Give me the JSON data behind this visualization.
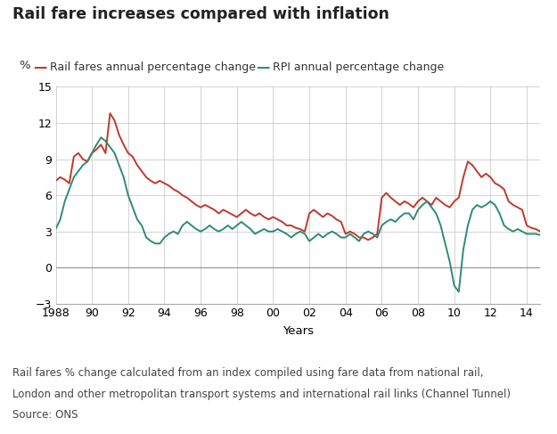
{
  "title": "Rail fare increases compared with inflation",
  "legend": [
    {
      "label": "Rail fares annual percentage change",
      "color": "#c0392b"
    },
    {
      "label": "RPI annual percentage change",
      "color": "#2e8b74"
    }
  ],
  "xlabel": "Years",
  "ylabel": "%",
  "ylim": [
    -3,
    15
  ],
  "yticks": [
    -3,
    0,
    3,
    6,
    9,
    12,
    15
  ],
  "xtick_labels": [
    "1988",
    "90",
    "92",
    "94",
    "96",
    "98",
    "00",
    "02",
    "04",
    "06",
    "08",
    "10",
    "12",
    "14"
  ],
  "xtick_positions": [
    1988,
    1990,
    1992,
    1994,
    1996,
    1998,
    2000,
    2002,
    2004,
    2006,
    2008,
    2010,
    2012,
    2014
  ],
  "footnote1": "Rail fares % change calculated from an index compiled using fare data from national rail,",
  "footnote2": "London and other metropolitan transport systems and international rail links (Channel Tunnel)",
  "footnote3": "Source: ONS",
  "background_color": "#ffffff",
  "grid_color": "#cccccc",
  "title_fontsize": 12.5,
  "label_fontsize": 9.5,
  "tick_fontsize": 9.0,
  "footnote_fontsize": 8.5,
  "rail_x": [
    1988.0,
    1988.25,
    1988.5,
    1988.75,
    1989.0,
    1989.25,
    1989.5,
    1989.75,
    1990.0,
    1990.25,
    1990.5,
    1990.75,
    1991.0,
    1991.25,
    1991.5,
    1991.75,
    1992.0,
    1992.25,
    1992.5,
    1992.75,
    1993.0,
    1993.25,
    1993.5,
    1993.75,
    1994.0,
    1994.25,
    1994.5,
    1994.75,
    1995.0,
    1995.25,
    1995.5,
    1995.75,
    1996.0,
    1996.25,
    1996.5,
    1996.75,
    1997.0,
    1997.25,
    1997.5,
    1997.75,
    1998.0,
    1998.25,
    1998.5,
    1998.75,
    1999.0,
    1999.25,
    1999.5,
    1999.75,
    2000.0,
    2000.25,
    2000.5,
    2000.75,
    2001.0,
    2001.25,
    2001.5,
    2001.75,
    2002.0,
    2002.25,
    2002.5,
    2002.75,
    2003.0,
    2003.25,
    2003.5,
    2003.75,
    2004.0,
    2004.25,
    2004.5,
    2004.75,
    2005.0,
    2005.25,
    2005.5,
    2005.75,
    2006.0,
    2006.25,
    2006.5,
    2006.75,
    2007.0,
    2007.25,
    2007.5,
    2007.75,
    2008.0,
    2008.25,
    2008.5,
    2008.75,
    2009.0,
    2009.25,
    2009.5,
    2009.75,
    2010.0,
    2010.25,
    2010.5,
    2010.75,
    2011.0,
    2011.25,
    2011.5,
    2011.75,
    2012.0,
    2012.25,
    2012.5,
    2012.75,
    2013.0,
    2013.25,
    2013.5,
    2013.75,
    2014.0,
    2014.25,
    2014.5,
    2014.75
  ],
  "rail_y": [
    7.2,
    7.5,
    7.3,
    7.0,
    9.2,
    9.5,
    9.0,
    8.8,
    9.5,
    9.8,
    10.2,
    9.5,
    12.8,
    12.2,
    11.0,
    10.2,
    9.5,
    9.2,
    8.5,
    8.0,
    7.5,
    7.2,
    7.0,
    7.2,
    7.0,
    6.8,
    6.5,
    6.3,
    6.0,
    5.8,
    5.5,
    5.2,
    5.0,
    5.2,
    5.0,
    4.8,
    4.5,
    4.8,
    4.6,
    4.4,
    4.2,
    4.5,
    4.8,
    4.5,
    4.3,
    4.5,
    4.2,
    4.0,
    4.2,
    4.0,
    3.8,
    3.5,
    3.5,
    3.3,
    3.2,
    3.0,
    4.5,
    4.8,
    4.5,
    4.2,
    4.5,
    4.3,
    4.0,
    3.8,
    2.8,
    3.0,
    2.8,
    2.5,
    2.5,
    2.3,
    2.5,
    2.8,
    5.8,
    6.2,
    5.8,
    5.5,
    5.2,
    5.5,
    5.3,
    5.0,
    5.5,
    5.8,
    5.5,
    5.2,
    5.8,
    5.5,
    5.2,
    5.0,
    5.5,
    5.8,
    7.5,
    8.8,
    8.5,
    8.0,
    7.5,
    7.8,
    7.5,
    7.0,
    6.8,
    6.5,
    5.5,
    5.2,
    5.0,
    4.8,
    3.5,
    3.3,
    3.2,
    3.0
  ],
  "rpi_x": [
    1988.0,
    1988.25,
    1988.5,
    1988.75,
    1989.0,
    1989.25,
    1989.5,
    1989.75,
    1990.0,
    1990.25,
    1990.5,
    1990.75,
    1991.0,
    1991.25,
    1991.5,
    1991.75,
    1992.0,
    1992.25,
    1992.5,
    1992.75,
    1993.0,
    1993.25,
    1993.5,
    1993.75,
    1994.0,
    1994.25,
    1994.5,
    1994.75,
    1995.0,
    1995.25,
    1995.5,
    1995.75,
    1996.0,
    1996.25,
    1996.5,
    1996.75,
    1997.0,
    1997.25,
    1997.5,
    1997.75,
    1998.0,
    1998.25,
    1998.5,
    1998.75,
    1999.0,
    1999.25,
    1999.5,
    1999.75,
    2000.0,
    2000.25,
    2000.5,
    2000.75,
    2001.0,
    2001.25,
    2001.5,
    2001.75,
    2002.0,
    2002.25,
    2002.5,
    2002.75,
    2003.0,
    2003.25,
    2003.5,
    2003.75,
    2004.0,
    2004.25,
    2004.5,
    2004.75,
    2005.0,
    2005.25,
    2005.5,
    2005.75,
    2006.0,
    2006.25,
    2006.5,
    2006.75,
    2007.0,
    2007.25,
    2007.5,
    2007.75,
    2008.0,
    2008.25,
    2008.5,
    2008.75,
    2009.0,
    2009.25,
    2009.5,
    2009.75,
    2010.0,
    2010.25,
    2010.5,
    2010.75,
    2011.0,
    2011.25,
    2011.5,
    2011.75,
    2012.0,
    2012.25,
    2012.5,
    2012.75,
    2013.0,
    2013.25,
    2013.5,
    2013.75,
    2014.0,
    2014.25,
    2014.5,
    2014.75
  ],
  "rpi_y": [
    3.2,
    4.0,
    5.5,
    6.5,
    7.5,
    8.0,
    8.5,
    8.8,
    9.5,
    10.2,
    10.8,
    10.5,
    10.0,
    9.5,
    8.5,
    7.5,
    6.0,
    5.0,
    4.0,
    3.5,
    2.5,
    2.2,
    2.0,
    2.0,
    2.5,
    2.8,
    3.0,
    2.8,
    3.5,
    3.8,
    3.5,
    3.2,
    3.0,
    3.2,
    3.5,
    3.2,
    3.0,
    3.2,
    3.5,
    3.2,
    3.5,
    3.8,
    3.5,
    3.2,
    2.8,
    3.0,
    3.2,
    3.0,
    3.0,
    3.2,
    3.0,
    2.8,
    2.5,
    2.8,
    3.0,
    2.8,
    2.2,
    2.5,
    2.8,
    2.5,
    2.8,
    3.0,
    2.8,
    2.5,
    2.5,
    2.8,
    2.5,
    2.2,
    2.8,
    3.0,
    2.8,
    2.5,
    3.5,
    3.8,
    4.0,
    3.8,
    4.2,
    4.5,
    4.5,
    4.0,
    4.8,
    5.2,
    5.5,
    5.0,
    4.5,
    3.5,
    2.0,
    0.5,
    -1.5,
    -2.0,
    1.5,
    3.5,
    4.8,
    5.2,
    5.0,
    5.2,
    5.5,
    5.2,
    4.5,
    3.5,
    3.2,
    3.0,
    3.2,
    3.0,
    2.8,
    2.8,
    2.8,
    2.7
  ]
}
